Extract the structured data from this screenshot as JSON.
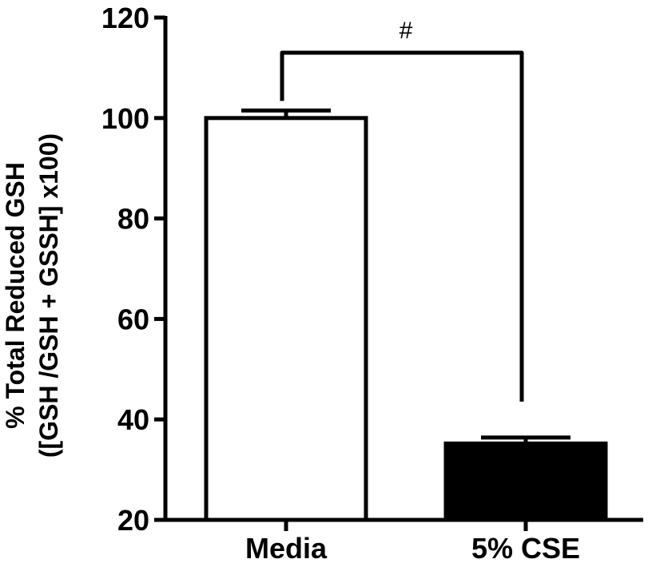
{
  "chart_data": {
    "type": "bar",
    "categories": [
      "Media",
      "5% CSE"
    ],
    "series": [
      {
        "values": [
          100,
          35.2
        ],
        "errors": [
          1.5,
          1.2
        ],
        "fill_colors": [
          "#ffffff",
          "#000000"
        ]
      }
    ],
    "ylabel_line1": "% Total Reduced GSH",
    "ylabel_line2": "([GSH /GSH + GSSH] x100)",
    "ylim": [
      20,
      120
    ],
    "yticks": [
      20,
      40,
      60,
      80,
      100,
      120
    ],
    "grid": false,
    "annotation": {
      "symbol": "#",
      "bracket_from": "Media",
      "bracket_to": "5% CSE",
      "bracket_y": 113
    }
  }
}
